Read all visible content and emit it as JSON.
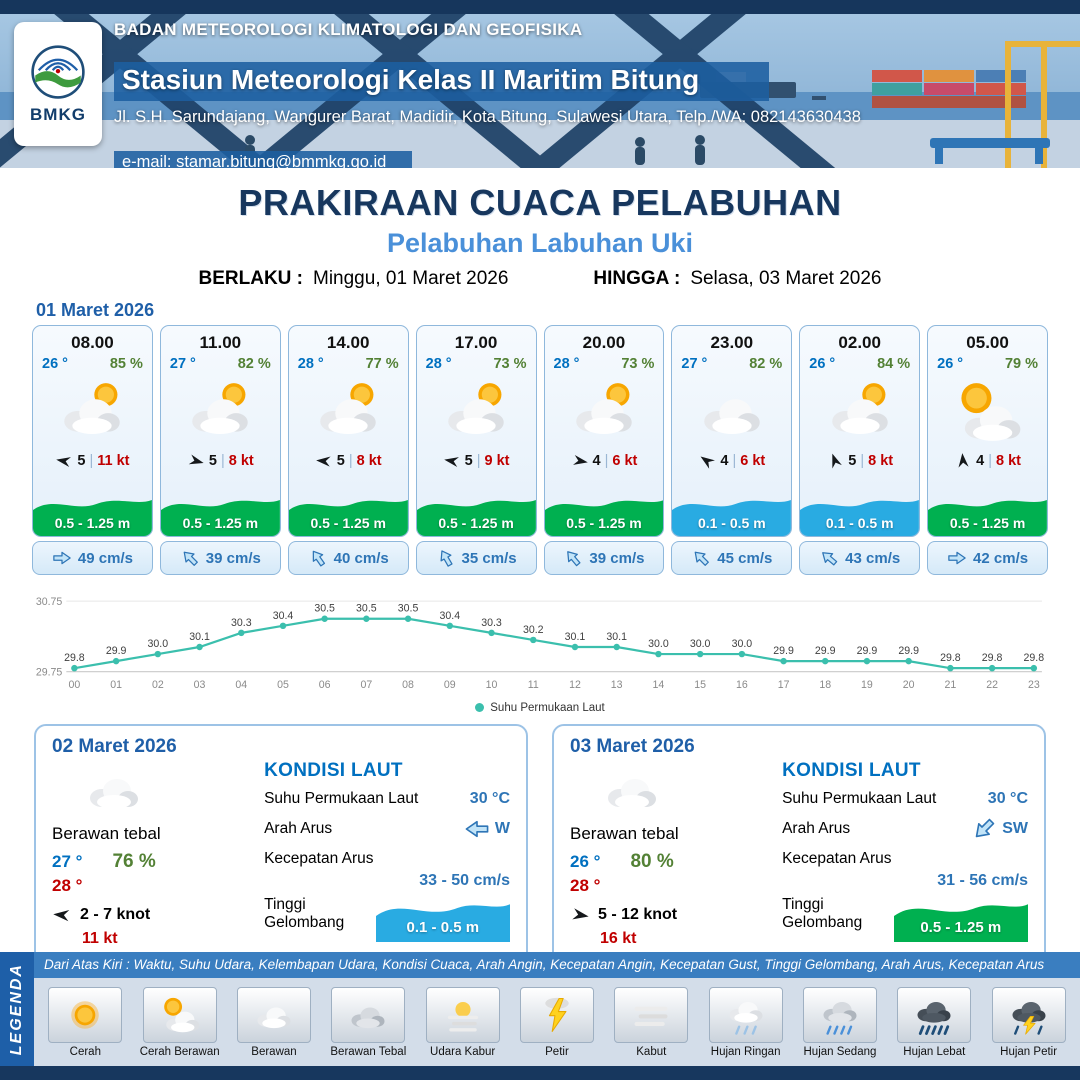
{
  "colors": {
    "accent_navy": "#17375E",
    "accent_blue": "#4A90D9",
    "temp_blue": "#0070C0",
    "humidity_green": "#538135",
    "gust_red": "#C00000",
    "wave_green": "#00B050",
    "wave_blue": "#29ABE2",
    "current_blue": "#2E75B6",
    "chart_line": "#3BBFAD",
    "legend_bar": "#3A7EC0"
  },
  "header": {
    "logo_label": "BMKG",
    "agency": "BADAN METEOROLOGI KLIMATOLOGI DAN GEOFISIKA",
    "station": "Stasiun Meteorologi Kelas II Maritim Bitung",
    "address": "Jl. S.H. Sarundajang, Wangurer Barat, Madidir, Kota Bitung, Sulawesi Utara, Telp./WA: 082143630438",
    "email": "e-mail: stamar.bitung@bmmkg.go.id"
  },
  "title": {
    "main": "PRAKIRAAN CUACA PELABUHAN",
    "sub": "Pelabuhan Labuhan Uki",
    "valid_from_label": "BERLAKU :",
    "valid_from": "Minggu, 01 Maret 2026",
    "valid_to_label": "HINGGA :",
    "valid_to": "Selasa, 03 Maret 2026"
  },
  "forecast_day1": {
    "date": "01 Maret 2026",
    "cards": [
      {
        "time": "08.00",
        "temp": "26 °",
        "humidity": "85 %",
        "icon": "cloud-sun",
        "wind_deg": 190,
        "wind_speed": "5",
        "gust": "11 kt",
        "wave": "0.5 - 1.25 m",
        "wave_color": "green",
        "current_deg": 0,
        "current": "49 cm/s"
      },
      {
        "time": "11.00",
        "temp": "27 °",
        "humidity": "82 %",
        "icon": "cloud-sun",
        "wind_deg": 15,
        "wind_speed": "5",
        "gust": "8 kt",
        "wave": "0.5 - 1.25 m",
        "wave_color": "green",
        "current_deg": -135,
        "current": "39 cm/s"
      },
      {
        "time": "14.00",
        "temp": "28 °",
        "humidity": "77 %",
        "icon": "cloud-sun",
        "wind_deg": 185,
        "wind_speed": "5",
        "gust": "8 kt",
        "wave": "0.5 - 1.25 m",
        "wave_color": "green",
        "current_deg": -125,
        "current": "40 cm/s"
      },
      {
        "time": "17.00",
        "temp": "28 °",
        "humidity": "73 %",
        "icon": "cloud-sun",
        "wind_deg": 190,
        "wind_speed": "5",
        "gust": "9 kt",
        "wave": "0.5 - 1.25 m",
        "wave_color": "green",
        "current_deg": -120,
        "current": "35 cm/s"
      },
      {
        "time": "20.00",
        "temp": "28 °",
        "humidity": "73 %",
        "icon": "cloud-sun",
        "wind_deg": 10,
        "wind_speed": "4",
        "gust": "6 kt",
        "wave": "0.5 - 1.25 m",
        "wave_color": "green",
        "current_deg": -130,
        "current": "39 cm/s"
      },
      {
        "time": "23.00",
        "temp": "27 °",
        "humidity": "82 %",
        "icon": "cloud",
        "wind_deg": 215,
        "wind_speed": "4",
        "gust": "6 kt",
        "wave": "0.1 - 0.5 m",
        "wave_color": "blue",
        "current_deg": -135,
        "current": "45 cm/s"
      },
      {
        "time": "02.00",
        "temp": "26 °",
        "humidity": "84 %",
        "icon": "cloud-sun",
        "wind_deg": 250,
        "wind_speed": "5",
        "gust": "8 kt",
        "wave": "0.1 - 0.5 m",
        "wave_color": "blue",
        "current_deg": -140,
        "current": "43 cm/s"
      },
      {
        "time": "05.00",
        "temp": "26 °",
        "humidity": "79 %",
        "icon": "sun-cloud",
        "wind_deg": 265,
        "wind_speed": "4",
        "gust": "8 kt",
        "wave": "0.5 - 1.25 m",
        "wave_color": "green",
        "current_deg": 0,
        "current": "42 cm/s"
      }
    ]
  },
  "chart_data": {
    "type": "line",
    "title": "Suhu Permukaan Laut",
    "legend": "Suhu Permukaan Laut",
    "legend_position": "bottom",
    "x": [
      "00",
      "01",
      "02",
      "03",
      "04",
      "05",
      "06",
      "07",
      "08",
      "09",
      "10",
      "11",
      "12",
      "13",
      "14",
      "15",
      "16",
      "17",
      "18",
      "19",
      "20",
      "21",
      "22",
      "23"
    ],
    "values": [
      29.8,
      29.9,
      30.0,
      30.1,
      30.3,
      30.4,
      30.5,
      30.5,
      30.5,
      30.4,
      30.3,
      30.2,
      30.1,
      30.1,
      30.0,
      30.0,
      30.0,
      29.9,
      29.9,
      29.9,
      29.9,
      29.8,
      29.8,
      29.8
    ],
    "xlabel": "",
    "ylabel": "",
    "ylim": [
      29.75,
      30.75
    ],
    "grid": false,
    "line_color": "#3BBFAD"
  },
  "daily": [
    {
      "date": "02 Maret 2026",
      "icon": "cloud",
      "condition": "Berawan tebal",
      "temp_min": "27 °",
      "temp_max": "28 °",
      "humidity": "76 %",
      "wind_deg": 185,
      "wind_range": "2 - 7 knot",
      "gust": "11 kt",
      "sea": {
        "title": "KONDISI LAUT",
        "sst_label": "Suhu Permukaan Laut",
        "sst_value": "30 °C",
        "current_dir_label": "Arah Arus",
        "current_dir": "W",
        "current_dir_deg": 180,
        "current_speed_label": "Kecepatan Arus",
        "current_speed": "33 - 50 cm/s",
        "wave_label": "Tinggi Gelombang",
        "wave_value": "0.1 - 0.5 m",
        "wave_color": "blue"
      }
    },
    {
      "date": "03 Maret 2026",
      "icon": "cloud",
      "condition": "Berawan tebal",
      "temp_min": "26 °",
      "temp_max": "28 °",
      "humidity": "80 %",
      "wind_deg": 10,
      "wind_range": "5 - 12 knot",
      "gust": "16 kt",
      "sea": {
        "title": "KONDISI LAUT",
        "sst_label": "Suhu Permukaan Laut",
        "sst_value": "30 °C",
        "current_dir_label": "Arah Arus",
        "current_dir": "SW",
        "current_dir_deg": 135,
        "current_speed_label": "Kecepatan Arus",
        "current_speed": "31 - 56 cm/s",
        "wave_label": "Tinggi Gelombang",
        "wave_value": "0.5 - 1.25 m",
        "wave_color": "green"
      }
    }
  ],
  "legend": {
    "label": "LEGENDA",
    "description": "Dari Atas Kiri : Waktu, Suhu Udara, Kelembapan Udara, Kondisi Cuaca, Arah Angin, Kecepatan Angin, Kecepatan Gust, Tinggi Gelombang, Arah Arus, Kecepatan Arus",
    "items": [
      {
        "label": "Cerah",
        "icon": "sun"
      },
      {
        "label": "Cerah Berawan",
        "icon": "sun-cloud"
      },
      {
        "label": "Berawan",
        "icon": "cloud"
      },
      {
        "label": "Berawan Tebal",
        "icon": "cloud-thick"
      },
      {
        "label": "Udara Kabur",
        "icon": "haze"
      },
      {
        "label": "Petir",
        "icon": "lightning"
      },
      {
        "label": "Kabut",
        "icon": "fog"
      },
      {
        "label": "Hujan Ringan",
        "icon": "rain-light"
      },
      {
        "label": "Hujan Sedang",
        "icon": "rain-medium"
      },
      {
        "label": "Hujan Lebat",
        "icon": "rain-heavy"
      },
      {
        "label": "Hujan Petir",
        "icon": "rain-thunder"
      }
    ]
  }
}
